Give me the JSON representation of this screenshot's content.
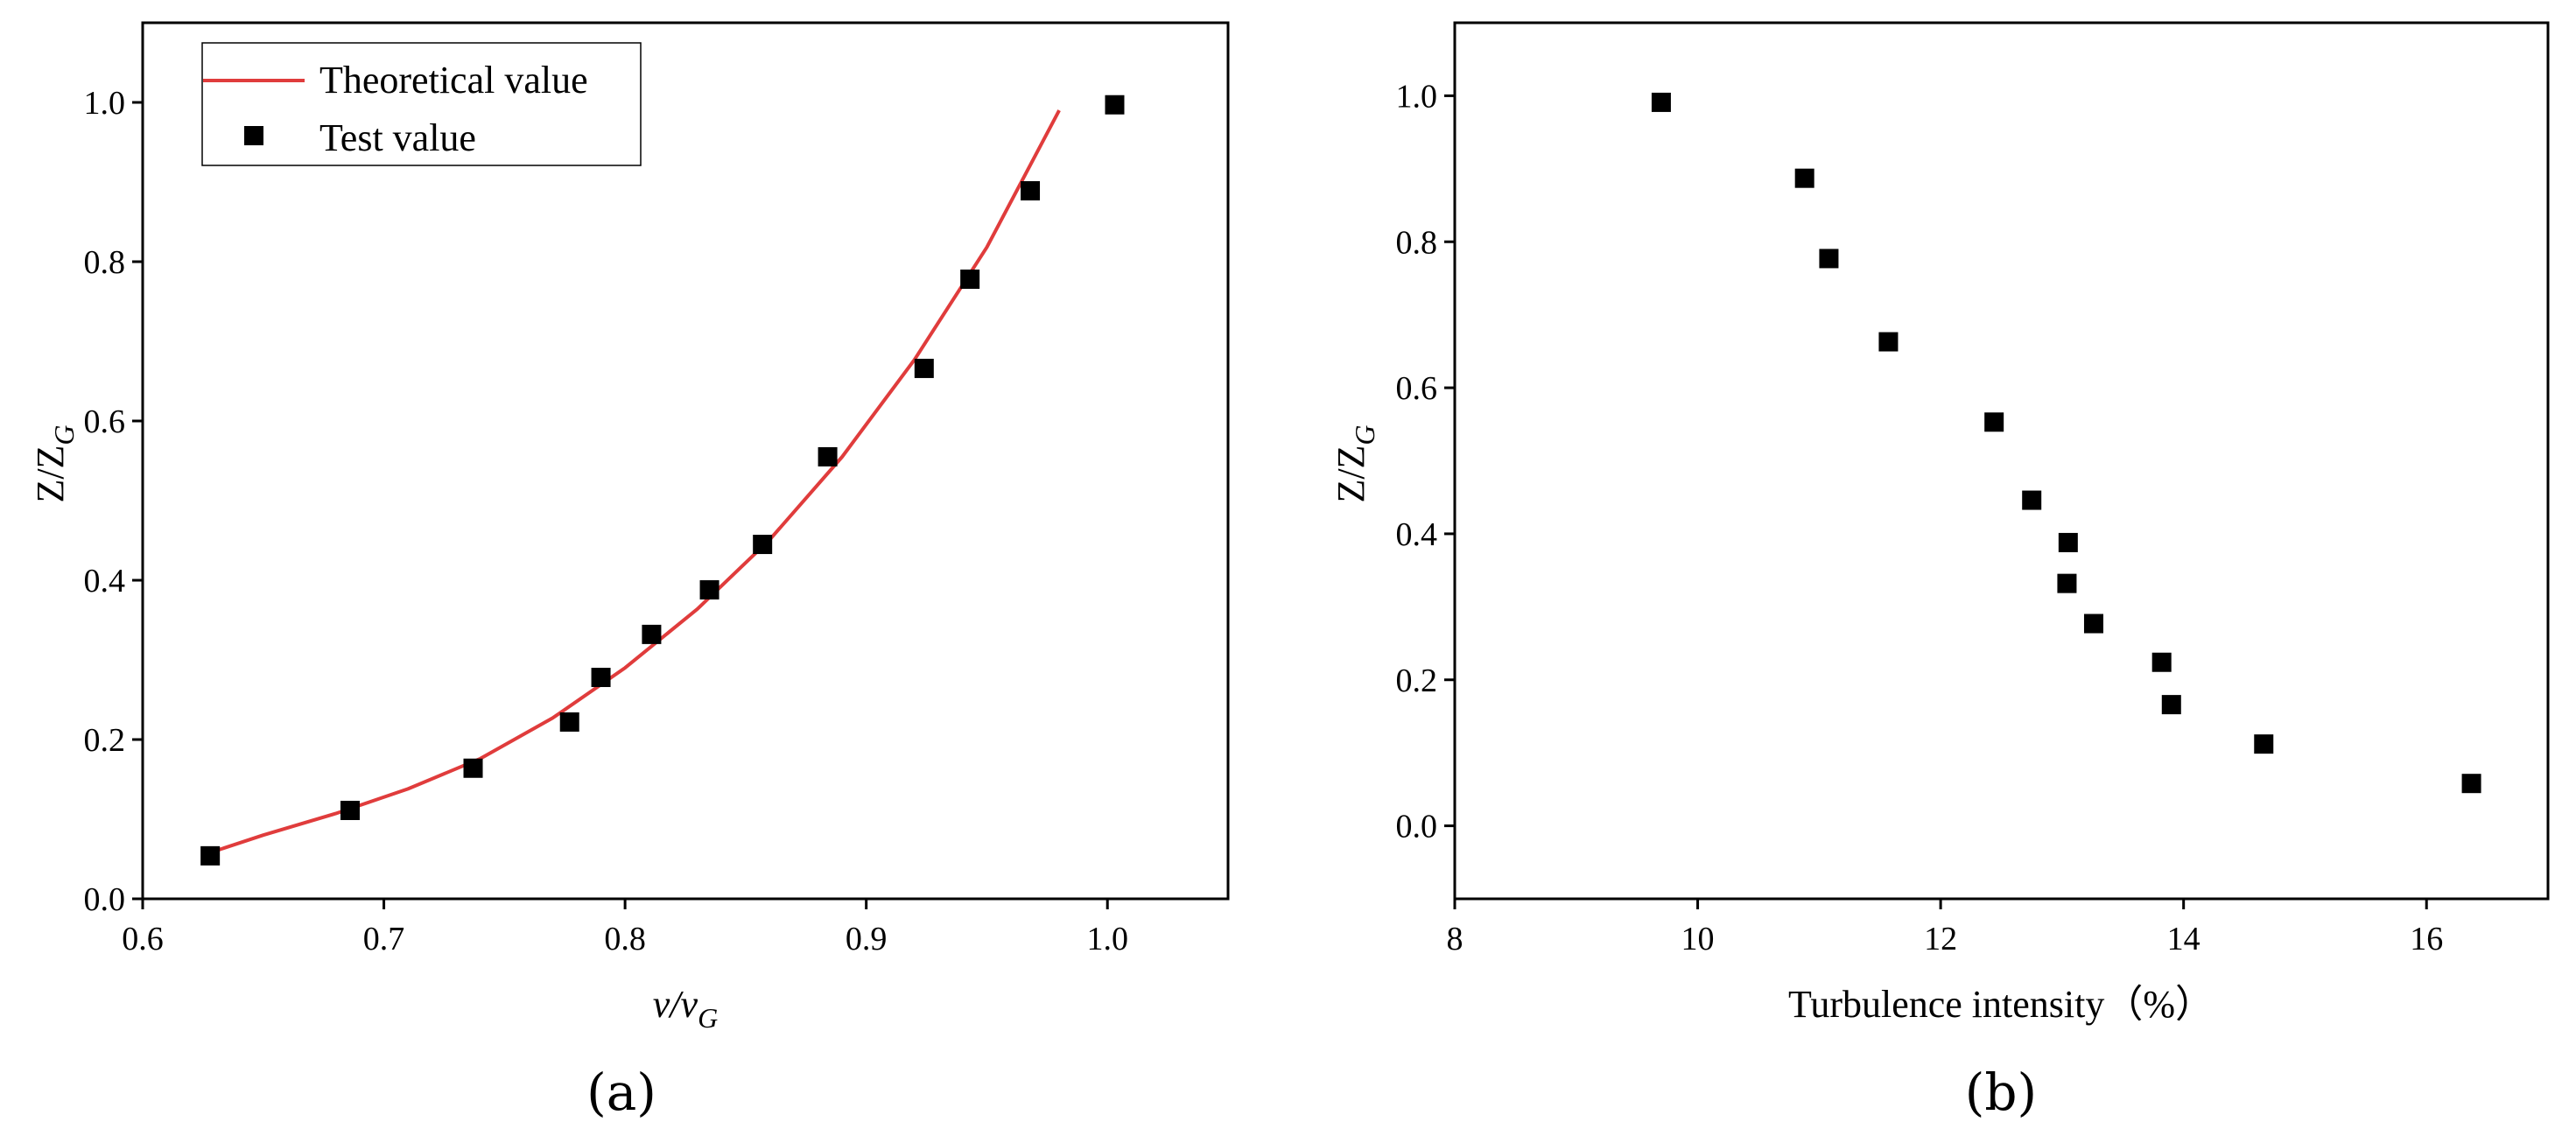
{
  "chart_data": [
    {
      "panel_label": "(a)",
      "type": "scatter",
      "xlabel_main": "v/v",
      "xlabel_sub": "G",
      "ylabel_main": "Z/Z",
      "ylabel_sub": "G",
      "xlim": [
        0.6,
        1.05
      ],
      "ylim": [
        0.0,
        1.1
      ],
      "xticks": [
        "0.6",
        "0.7",
        "0.8",
        "0.9",
        "1.0"
      ],
      "yticks": [
        "0.0",
        "0.2",
        "0.4",
        "0.6",
        "0.8",
        "1.0"
      ],
      "legend_position": "top-left",
      "series": [
        {
          "name": "Theoretical value",
          "kind": "line",
          "color": "#e03c3c",
          "x": [
            0.628,
            0.65,
            0.68,
            0.71,
            0.74,
            0.77,
            0.8,
            0.83,
            0.86,
            0.89,
            0.92,
            0.95,
            0.98
          ],
          "y": [
            0.058,
            0.08,
            0.107,
            0.138,
            0.176,
            0.227,
            0.29,
            0.364,
            0.451,
            0.555,
            0.677,
            0.818,
            0.99
          ]
        },
        {
          "name": "Test value",
          "kind": "scatter",
          "color": "#000000",
          "x": [
            0.628,
            0.686,
            0.737,
            0.777,
            0.79,
            0.811,
            0.835,
            0.857,
            0.884,
            0.924,
            0.943,
            0.968,
            1.003
          ],
          "y": [
            0.054,
            0.111,
            0.164,
            0.222,
            0.278,
            0.332,
            0.388,
            0.445,
            0.555,
            0.666,
            0.778,
            0.889,
            0.997
          ]
        }
      ]
    },
    {
      "panel_label": "(b)",
      "type": "scatter",
      "xlabel_main": "Turbulence intensity（%）",
      "ylabel_main": "Z/Z",
      "ylabel_sub": "G",
      "xlim": [
        8,
        17
      ],
      "ylim": [
        -0.1,
        1.1
      ],
      "xticks": [
        "8",
        "10",
        "12",
        "14",
        "16"
      ],
      "yticks": [
        "0.0",
        "0.2",
        "0.4",
        "0.6",
        "0.8",
        "1.0"
      ],
      "series": [
        {
          "kind": "scatter",
          "color": "#000000",
          "x": [
            9.7,
            10.88,
            11.08,
            11.57,
            12.44,
            12.75,
            13.05,
            13.04,
            13.26,
            13.82,
            13.9,
            14.66,
            16.37
          ],
          "y": [
            0.991,
            0.887,
            0.777,
            0.663,
            0.553,
            0.446,
            0.388,
            0.332,
            0.277,
            0.224,
            0.166,
            0.112,
            0.058
          ]
        }
      ]
    }
  ]
}
